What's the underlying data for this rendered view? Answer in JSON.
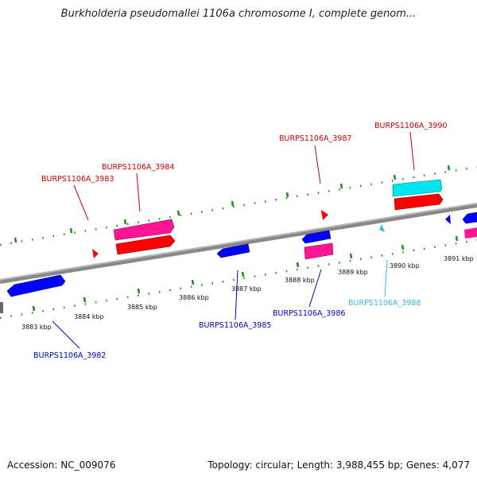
{
  "title": "Burkholderia pseudomallei 1106a chromosome I, complete genom...",
  "footer": {
    "accession": "Accession: NC_009076",
    "summary": "Topology: circular; Length: 3,988,455 bp; Genes: 4,077"
  },
  "ticks": [
    "3883 kbp",
    "3884 kbp",
    "3885 kbp",
    "3886 kbp",
    "3887 kbp",
    "3888 kbp",
    "3889 kbp",
    "3890 kbp",
    "3891 kbp"
  ],
  "gene_labels": [
    {
      "name": "BURPS1106A_3982",
      "color": "#0000cc"
    },
    {
      "name": "BURPS1106A_3983",
      "color": "#cc0000"
    },
    {
      "name": "BURPS1106A_3984",
      "color": "#cc0000"
    },
    {
      "name": "BURPS1106A_3985",
      "color": "#0000cc"
    },
    {
      "name": "BURPS1106A_3986",
      "color": "#0000cc"
    },
    {
      "name": "BURPS1106A_3987",
      "color": "#cc0000"
    },
    {
      "name": "BURPS1106A_3988",
      "color": "#33bbdd"
    },
    {
      "name": "BURPS1106A_3990",
      "color": "#cc0000"
    }
  ],
  "colors": {
    "forward_cds": "#ff0000",
    "forward_gene": "#ff1493",
    "reverse_cds": "#0000ff",
    "rna": "#00e5ee",
    "backbone": "#888888",
    "tick_marks": "#228b22"
  }
}
